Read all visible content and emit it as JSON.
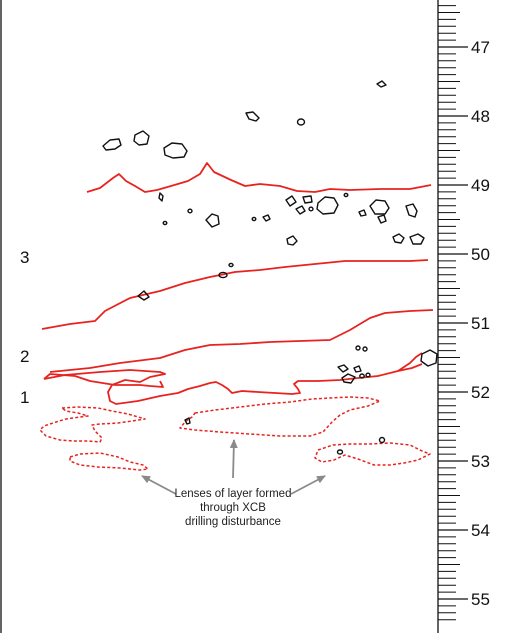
{
  "figure": {
    "unit_labels": [
      "3",
      "2",
      "1"
    ],
    "depth_scale": {
      "major_ticks": [
        "47",
        "48",
        "49",
        "50",
        "51",
        "52",
        "53",
        "54",
        "55"
      ],
      "minor_per_major": 10
    },
    "annotation": {
      "lines": [
        "Lenses of layer formed",
        "through XCB",
        "drilling disturbance"
      ]
    },
    "colors": {
      "boundary": "#e8231f",
      "clast": "#111111",
      "frame": "#111111",
      "arrow": "#8a8a8a"
    }
  }
}
